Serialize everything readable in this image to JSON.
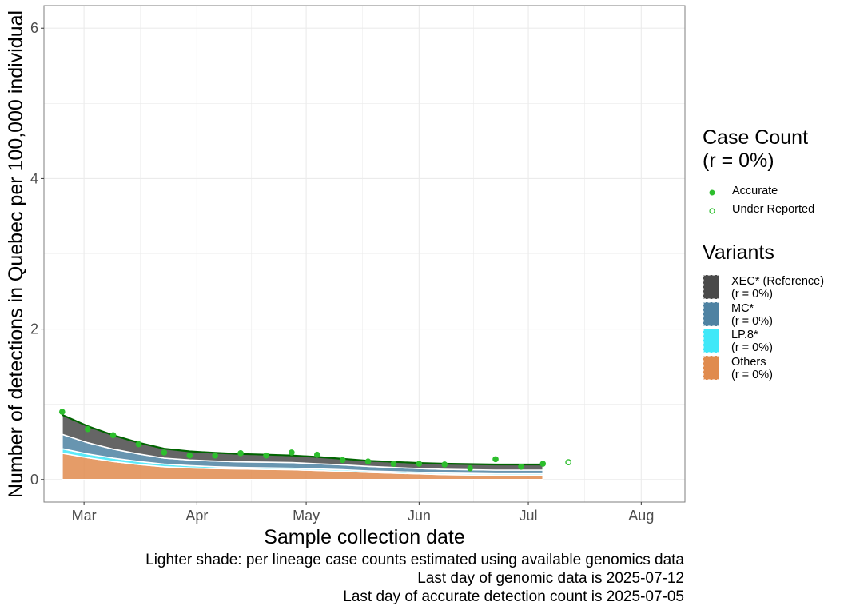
{
  "chart_data": {
    "type": "area",
    "ylabel": "Number of detections in Quebec per 100,000 individual",
    "xlabel": "Sample collection date",
    "ylim": [
      -0.3,
      6.3
    ],
    "y_ticks": [
      0,
      2,
      4,
      6
    ],
    "y_tick_labels": [
      "0",
      "2",
      "4",
      "6"
    ],
    "x_tick_labels": [
      "Mar",
      "Apr",
      "May",
      "Jun",
      "Jul",
      "Aug"
    ],
    "x_ticks": [
      "2025-03-01",
      "2025-04-01",
      "2025-05-01",
      "2025-06-01",
      "2025-07-01",
      "2025-08-01"
    ],
    "xlim": [
      "2025-02-18",
      "2025-08-13"
    ],
    "grid": true,
    "dates": [
      "2025-02-23",
      "2025-03-02",
      "2025-03-09",
      "2025-03-16",
      "2025-03-23",
      "2025-03-30",
      "2025-04-06",
      "2025-04-13",
      "2025-04-20",
      "2025-04-27",
      "2025-05-04",
      "2025-05-11",
      "2025-05-18",
      "2025-05-25",
      "2025-06-01",
      "2025-06-08",
      "2025-06-15",
      "2025-06-22",
      "2025-06-29",
      "2025-07-05"
    ],
    "series": [
      {
        "name": "Others",
        "color": "#E08B4E",
        "values": [
          0.35,
          0.29,
          0.24,
          0.2,
          0.17,
          0.155,
          0.145,
          0.14,
          0.135,
          0.13,
          0.12,
          0.11,
          0.095,
          0.085,
          0.075,
          0.065,
          0.06,
          0.055,
          0.055,
          0.055
        ]
      },
      {
        "name": "LP.8*",
        "color": "#40E8F8",
        "values": [
          0.06,
          0.05,
          0.045,
          0.04,
          0.035,
          0.03,
          0.025,
          0.02,
          0.02,
          0.02,
          0.02,
          0.02,
          0.02,
          0.02,
          0.02,
          0.02,
          0.02,
          0.02,
          0.02,
          0.02
        ]
      },
      {
        "name": "MC*",
        "color": "#4E82A2",
        "values": [
          0.19,
          0.15,
          0.12,
          0.1,
          0.08,
          0.075,
          0.075,
          0.075,
          0.075,
          0.075,
          0.07,
          0.065,
          0.06,
          0.055,
          0.05,
          0.05,
          0.05,
          0.05,
          0.05,
          0.05
        ]
      },
      {
        "name": "XEC* (Reference)",
        "color": "#4A4A4A",
        "values": [
          0.26,
          0.22,
          0.185,
          0.15,
          0.125,
          0.115,
          0.11,
          0.105,
          0.1,
          0.095,
          0.09,
          0.08,
          0.075,
          0.075,
          0.075,
          0.075,
          0.075,
          0.075,
          0.075,
          0.075
        ]
      }
    ],
    "case_count_accurate": {
      "dates": [
        "2025-02-23",
        "2025-03-02",
        "2025-03-09",
        "2025-03-16",
        "2025-03-23",
        "2025-03-30",
        "2025-04-06",
        "2025-04-13",
        "2025-04-20",
        "2025-04-27",
        "2025-05-04",
        "2025-05-11",
        "2025-05-18",
        "2025-05-25",
        "2025-06-01",
        "2025-06-08",
        "2025-06-15",
        "2025-06-22",
        "2025-06-29",
        "2025-07-05"
      ],
      "values": [
        0.9,
        0.67,
        0.59,
        0.47,
        0.36,
        0.32,
        0.32,
        0.35,
        0.32,
        0.36,
        0.33,
        0.26,
        0.24,
        0.21,
        0.21,
        0.2,
        0.15,
        0.27,
        0.17,
        0.21
      ]
    },
    "case_count_under_reported": {
      "dates": [
        "2025-07-12"
      ],
      "values": [
        0.23
      ]
    },
    "colors": {
      "line": "#006400",
      "point": "#2DBE2D",
      "grid": "#EBEBEB",
      "panel_border": "#7F7F7F"
    }
  },
  "legend": {
    "case_title": "Case Count\n(r = 0%)",
    "accurate_label": "Accurate",
    "under_label": "Under Reported",
    "variants_title": "Variants",
    "variants": [
      {
        "label": "XEC* (Reference)\n(r = 0%)",
        "color": "#4A4A4A"
      },
      {
        "label": "MC*\n(r = 0%)",
        "color": "#4E82A2"
      },
      {
        "label": "LP.8*\n(r = 0%)",
        "color": "#40E8F8"
      },
      {
        "label": "Others\n(r = 0%)",
        "color": "#E08B4E"
      }
    ]
  },
  "caption": {
    "line1": "Lighter shade: per lineage case counts estimated using available genomics data",
    "line2": "Last day of genomic data is 2025-07-12",
    "line3": "Last day of accurate detection count is 2025-07-05"
  }
}
